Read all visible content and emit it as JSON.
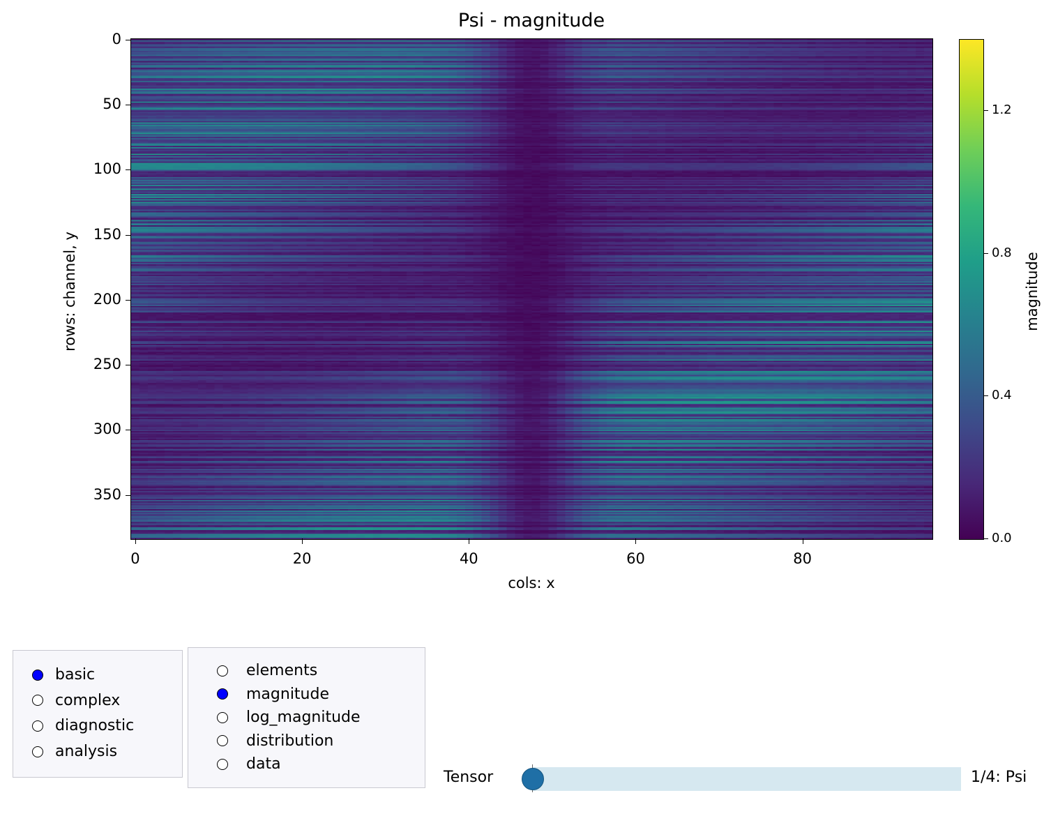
{
  "chart_data": {
    "type": "heatmap",
    "title": "Psi - magnitude",
    "xlabel": "cols: x",
    "ylabel": "rows: channel, y",
    "x_ticks": [
      0,
      20,
      40,
      60,
      80
    ],
    "y_ticks": [
      0,
      50,
      100,
      150,
      200,
      250,
      300,
      350
    ],
    "xlim": [
      -0.5,
      95.5
    ],
    "ylim": [
      383.5,
      -0.5
    ],
    "colormap": "viridis",
    "colorbar": {
      "label": "magnitude",
      "ticks": [
        "0.0",
        "0.4",
        "0.8",
        "1.2"
      ],
      "range": [
        0.0,
        1.4
      ]
    }
  },
  "view_options": {
    "items": [
      {
        "label": "basic",
        "selected": true
      },
      {
        "label": "complex",
        "selected": false
      },
      {
        "label": "diagnostic",
        "selected": false
      },
      {
        "label": "analysis",
        "selected": false
      }
    ]
  },
  "plot_options": {
    "items": [
      {
        "label": "elements",
        "selected": false
      },
      {
        "label": "magnitude",
        "selected": true
      },
      {
        "label": "log_magnitude",
        "selected": false
      },
      {
        "label": "distribution",
        "selected": false
      },
      {
        "label": "data",
        "selected": false
      }
    ]
  },
  "tensor_slider": {
    "label": "Tensor",
    "value_text": "1/4: Psi",
    "position": 0
  },
  "colors": {
    "radio_selected": "#0000ff",
    "slider_track": "#d6e8f0",
    "slider_handle": "#1f6fa6",
    "panel_bg": "#f7f7fb"
  }
}
